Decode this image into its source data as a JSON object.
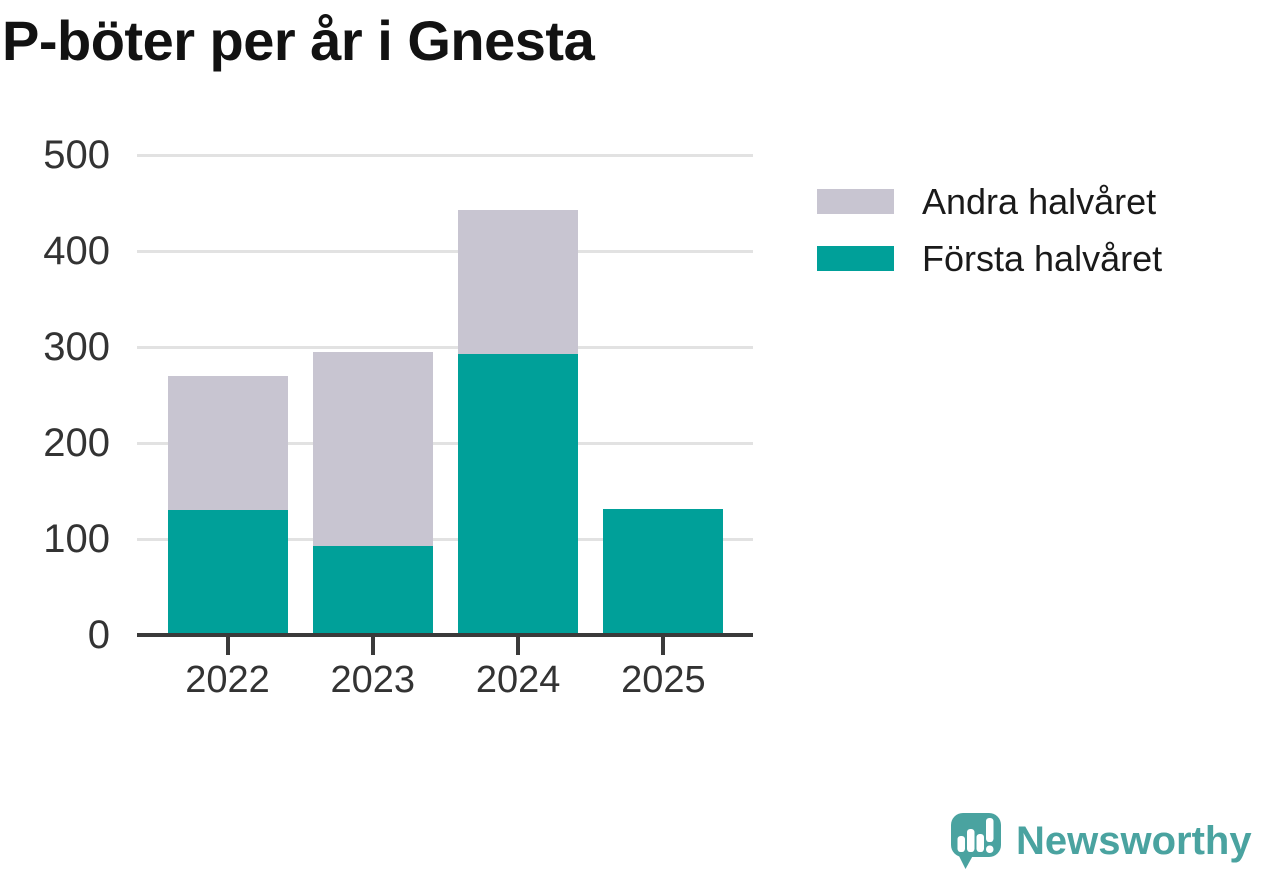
{
  "title": "P-böter per år i Gnesta",
  "chart_data": {
    "type": "bar",
    "stacked": true,
    "title": "P-böter per år i Gnesta",
    "categories": [
      "2022",
      "2023",
      "2024",
      "2025"
    ],
    "series": [
      {
        "name": "Första halvåret",
        "color": "#00a099",
        "values": [
          130,
          93,
          293,
          131
        ]
      },
      {
        "name": "Andra halvåret",
        "color": "#c8c5d1",
        "values": [
          140,
          202,
          150,
          0
        ]
      }
    ],
    "totals": [
      270,
      295,
      443,
      131
    ],
    "xlabel": "",
    "ylabel": "",
    "ylim": [
      0,
      500
    ],
    "yticks": [
      0,
      100,
      200,
      300,
      400,
      500
    ],
    "grid": true,
    "legend_position": "right"
  },
  "legend": {
    "items": [
      {
        "label": "Andra halvåret",
        "color": "#c8c5d1"
      },
      {
        "label": "Första halvåret",
        "color": "#00a099"
      }
    ]
  },
  "branding": {
    "name": "Newsworthy",
    "logo_icon": "newsworthy-logo",
    "color": "#4aa3a0"
  },
  "colors": {
    "bar_first_half": "#00a099",
    "bar_second_half": "#c8c5d1",
    "grid_line": "#e2e2e2",
    "axis_line": "#3a3a3a",
    "axis_text": "#333333",
    "title_text": "#121212",
    "background": "#ffffff"
  }
}
